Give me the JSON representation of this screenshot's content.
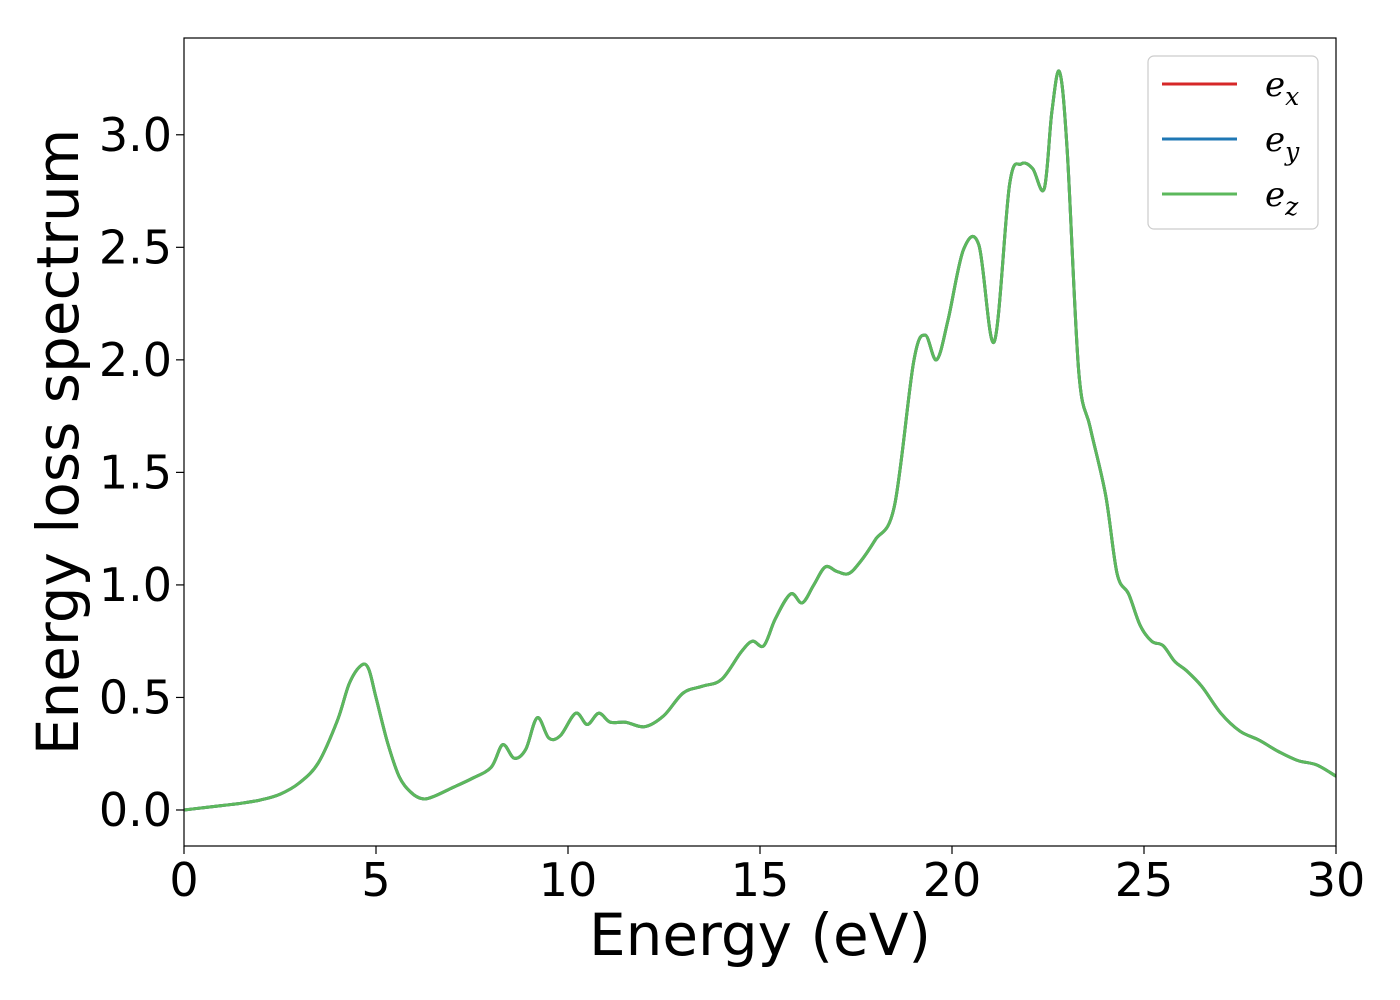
{
  "chart_data": {
    "type": "line",
    "xlabel": "Energy (eV)",
    "ylabel": "Energy loss spectrum",
    "xlim": [
      0,
      30
    ],
    "ylim": [
      -0.16,
      3.43
    ],
    "xticks": [
      0,
      5,
      10,
      15,
      20,
      25,
      30
    ],
    "yticks": [
      0.0,
      0.5,
      1.0,
      1.5,
      2.0,
      2.5,
      3.0
    ],
    "xtick_labels": [
      "0",
      "5",
      "10",
      "15",
      "20",
      "25",
      "30"
    ],
    "ytick_labels": [
      "0.0",
      "0.5",
      "1.0",
      "1.5",
      "2.0",
      "2.5",
      "3.0"
    ],
    "grid": false,
    "legend": "top-right",
    "series": [
      {
        "name": "e",
        "subscript": "x",
        "color": "#d62728"
      },
      {
        "name": "e",
        "subscript": "y",
        "color": "#1f77b4"
      },
      {
        "name": "e",
        "subscript": "z",
        "color": "#5cb85c"
      }
    ],
    "x": [
      0,
      0.5,
      1,
      1.5,
      2,
      2.5,
      3,
      3.5,
      4,
      4.3,
      4.6,
      4.8,
      5.0,
      5.3,
      5.6,
      5.9,
      6.2,
      6.5,
      7.0,
      7.5,
      8.0,
      8.3,
      8.6,
      8.9,
      9.2,
      9.5,
      9.8,
      10.2,
      10.5,
      10.8,
      11.1,
      11.5,
      12.0,
      12.5,
      13.0,
      13.5,
      14.0,
      14.5,
      14.8,
      15.1,
      15.4,
      15.8,
      16.1,
      16.4,
      16.7,
      17.0,
      17.3,
      17.6,
      18.0,
      18.5,
      19.0,
      19.3,
      19.6,
      19.9,
      20.3,
      20.7,
      21.1,
      21.5,
      21.8,
      22.1,
      22.4,
      22.6,
      22.8,
      23.0,
      23.3,
      23.6,
      24.0,
      24.3,
      24.6,
      24.9,
      25.2,
      25.5,
      25.8,
      26.1,
      26.5,
      27.0,
      27.5,
      28.0,
      28.5,
      29.0,
      29.5,
      30.0
    ],
    "values": [
      0.0,
      0.01,
      0.02,
      0.03,
      0.045,
      0.07,
      0.12,
      0.21,
      0.4,
      0.56,
      0.64,
      0.63,
      0.5,
      0.3,
      0.15,
      0.08,
      0.05,
      0.06,
      0.1,
      0.14,
      0.19,
      0.29,
      0.23,
      0.27,
      0.41,
      0.32,
      0.33,
      0.43,
      0.38,
      0.43,
      0.39,
      0.39,
      0.37,
      0.42,
      0.52,
      0.55,
      0.58,
      0.7,
      0.75,
      0.73,
      0.85,
      0.96,
      0.92,
      1.0,
      1.08,
      1.06,
      1.05,
      1.1,
      1.2,
      1.35,
      1.99,
      2.11,
      2.0,
      2.18,
      2.49,
      2.51,
      2.08,
      2.78,
      2.87,
      2.85,
      2.76,
      3.1,
      3.28,
      2.93,
      1.95,
      1.7,
      1.4,
      1.05,
      0.96,
      0.82,
      0.75,
      0.73,
      0.66,
      0.62,
      0.55,
      0.43,
      0.35,
      0.31,
      0.26,
      0.22,
      0.2,
      0.15
    ]
  }
}
